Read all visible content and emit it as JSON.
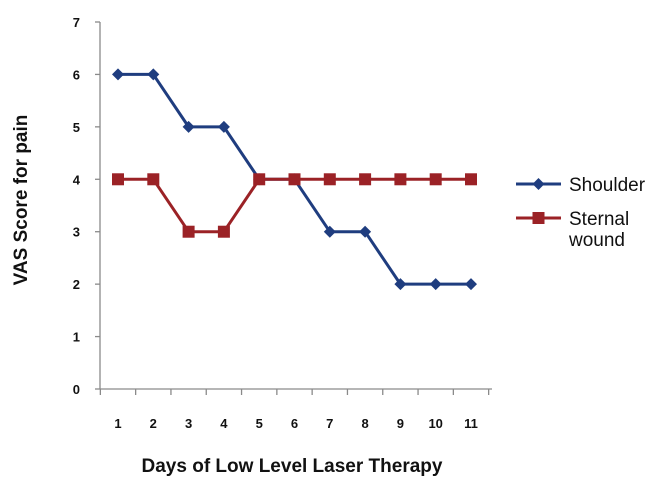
{
  "chart_data": {
    "type": "line",
    "xlabel": "Days of Low Level Laser Therapy",
    "ylabel": "VAS Score for pain",
    "categories": [
      "1",
      "2",
      "3",
      "4",
      "5",
      "6",
      "7",
      "8",
      "9",
      "10",
      "11"
    ],
    "ylim": [
      0,
      7
    ],
    "yticks": [
      "0",
      "1",
      "2",
      "3",
      "4",
      "5",
      "6",
      "7"
    ],
    "grid": false,
    "legend_position": "right",
    "series": [
      {
        "name": "Shoulder",
        "legend_lines": [
          "Shoulder"
        ],
        "marker": "diamond",
        "color": "#1F3D7F",
        "values": [
          6,
          6,
          5,
          5,
          4,
          4,
          3,
          3,
          2,
          2,
          2
        ]
      },
      {
        "name": "Sternal wound",
        "legend_lines": [
          "Sternal",
          "wound"
        ],
        "marker": "square",
        "color": "#9B2226",
        "values": [
          4,
          4,
          3,
          3,
          4,
          4,
          4,
          4,
          4,
          4,
          4
        ]
      }
    ]
  }
}
